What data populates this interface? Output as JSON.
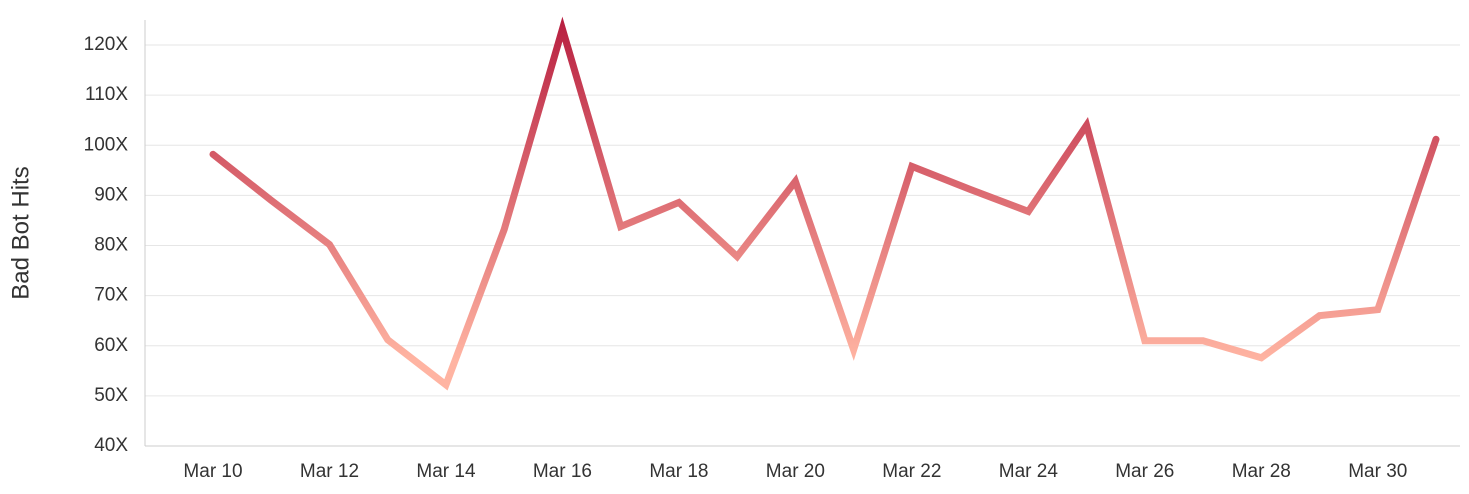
{
  "chart_data": {
    "type": "line",
    "y_label": "Bad Bot Hits",
    "categories": [
      "Mar 10",
      null,
      "Mar 12",
      null,
      "Mar 14",
      null,
      "Mar 16",
      null,
      "Mar 18",
      null,
      "Mar 20",
      null,
      "Mar 22",
      null,
      "Mar 24",
      null,
      "Mar 26",
      null,
      "Mar 28",
      null,
      "Mar 30",
      null
    ],
    "values": [
      98.2,
      89,
      80.2,
      61.2,
      52.2,
      83.2,
      123.2,
      83.8,
      88.6,
      77.8,
      92.8,
      59.2,
      95.8,
      91.2,
      86.8,
      104,
      61,
      61,
      57.6,
      66,
      67.2,
      101.2
    ],
    "gradient_colors": [
      "#ffb4a2",
      "#b81f40"
    ],
    "ylim": [
      40,
      125
    ],
    "yticks": [
      {
        "value": 40,
        "label": "40X"
      },
      {
        "value": 50,
        "label": "50X"
      },
      {
        "value": 60,
        "label": "60X"
      },
      {
        "value": 70,
        "label": "70X"
      },
      {
        "value": 80,
        "label": "80X"
      },
      {
        "value": 90,
        "label": "90X"
      },
      {
        "value": 100,
        "label": "100X"
      },
      {
        "value": 110,
        "label": "110X"
      },
      {
        "value": 120,
        "label": "120X"
      }
    ],
    "grid": true
  }
}
